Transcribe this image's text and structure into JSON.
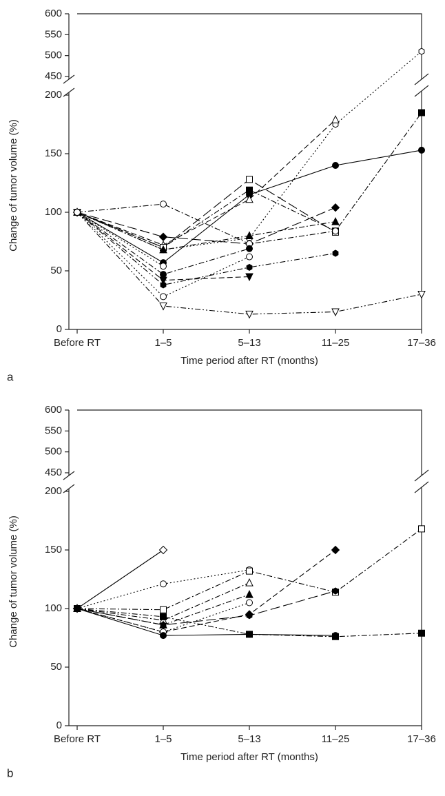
{
  "chart_data": [
    {
      "type": "line",
      "panel": "a",
      "ylabel": "Change of tumor volume (%)",
      "xlabel": "Time period after RT (months)",
      "categories": [
        "Before RT",
        "1–5",
        "5–13",
        "11–25",
        "17–36"
      ],
      "ylim": [
        0,
        600
      ],
      "yticks": [
        0,
        50,
        100,
        150,
        200,
        450,
        500,
        550,
        600
      ],
      "axis_break": [
        200,
        450
      ],
      "series": [
        {
          "color": "#000",
          "marker": "circle",
          "filled": true,
          "linestyle": "solid",
          "values": [
            100,
            57,
            115,
            140,
            153
          ]
        },
        {
          "color": "#000",
          "marker": "square",
          "filled": true,
          "linestyle": "dashdot",
          "values": [
            100,
            70,
            119,
            84,
            185
          ]
        },
        {
          "color": "#000",
          "marker": "hexagon",
          "filled": false,
          "linestyle": "dotted",
          "values": [
            100,
            68,
            78,
            175,
            510
          ]
        },
        {
          "color": "#000",
          "marker": "triangle",
          "filled": false,
          "linestyle": "dashed",
          "values": [
            100,
            72,
            111,
            179,
            null
          ]
        },
        {
          "color": "#000",
          "marker": "square",
          "filled": false,
          "linestyle": "longdash",
          "values": [
            100,
            70,
            128,
            83,
            null
          ]
        },
        {
          "color": "#000",
          "marker": "diamond",
          "filled": true,
          "linestyle": "longdash",
          "values": [
            100,
            79,
            73,
            104,
            null
          ]
        },
        {
          "color": "#000",
          "marker": "triangle",
          "filled": true,
          "linestyle": "dashdot",
          "values": [
            100,
            68,
            80,
            92,
            null
          ]
        },
        {
          "color": "#000",
          "marker": "circle",
          "filled": false,
          "linestyle": "dashdot",
          "values": [
            100,
            107,
            73,
            84,
            null
          ]
        },
        {
          "color": "#000",
          "marker": "hexagon",
          "filled": true,
          "linestyle": "dashdotdot",
          "values": [
            100,
            38,
            53,
            65,
            null
          ]
        },
        {
          "color": "#000",
          "marker": "triangle-down",
          "filled": true,
          "linestyle": "dashed",
          "values": [
            100,
            42,
            45,
            null,
            null
          ]
        },
        {
          "color": "#000",
          "marker": "triangle-down",
          "filled": false,
          "linestyle": "dashdotdot",
          "values": [
            100,
            20,
            13,
            15,
            30
          ]
        },
        {
          "color": "#000",
          "marker": "circle",
          "filled": false,
          "linestyle": "dotted",
          "values": [
            100,
            28,
            62,
            null,
            null
          ]
        },
        {
          "color": "#000",
          "marker": "circle",
          "filled": true,
          "linestyle": "dashdot",
          "values": [
            100,
            47,
            69,
            null,
            null
          ]
        },
        {
          "color": "#000",
          "marker": "circle",
          "filled": false,
          "linestyle": "dotted",
          "values": [
            100,
            54,
            null,
            null,
            null
          ]
        }
      ]
    },
    {
      "type": "line",
      "panel": "b",
      "ylabel": "Change of tumor volume (%)",
      "xlabel": "Time period after RT (months)",
      "categories": [
        "Before RT",
        "1–5",
        "5–13",
        "11–25",
        "17–36"
      ],
      "ylim": [
        0,
        600
      ],
      "yticks": [
        0,
        50,
        100,
        150,
        200,
        450,
        500,
        550,
        600
      ],
      "axis_break": [
        200,
        450
      ],
      "series": [
        {
          "color": "#000",
          "marker": "diamond",
          "filled": false,
          "linestyle": "solid",
          "values": [
            100,
            150,
            null,
            null,
            null
          ]
        },
        {
          "color": "#000",
          "marker": "circle",
          "filled": false,
          "linestyle": "dotted",
          "values": [
            100,
            121,
            133,
            null,
            null
          ]
        },
        {
          "color": "#000",
          "marker": "square",
          "filled": false,
          "linestyle": "dashdot",
          "values": [
            100,
            99,
            132,
            114,
            168
          ]
        },
        {
          "color": "#000",
          "marker": "diamond",
          "filled": true,
          "linestyle": "dashed",
          "values": [
            100,
            80,
            95,
            150,
            null
          ]
        },
        {
          "color": "#000",
          "marker": "triangle",
          "filled": false,
          "linestyle": "dashdot",
          "values": [
            100,
            90,
            122,
            null,
            null
          ]
        },
        {
          "color": "#000",
          "marker": "triangle",
          "filled": true,
          "linestyle": "dashdot",
          "values": [
            100,
            86,
            112,
            null,
            null
          ]
        },
        {
          "color": "#000",
          "marker": "hexagon",
          "filled": true,
          "linestyle": "longdash",
          "values": [
            100,
            86,
            94,
            115,
            null
          ]
        },
        {
          "color": "#000",
          "marker": "circle",
          "filled": false,
          "linestyle": "dotted",
          "values": [
            100,
            80,
            105,
            null,
            null
          ]
        },
        {
          "color": "#000",
          "marker": "square",
          "filled": true,
          "linestyle": "dashdot",
          "values": [
            100,
            93,
            78,
            76,
            79
          ]
        },
        {
          "color": "#000",
          "marker": "circle",
          "filled": true,
          "linestyle": "solid",
          "values": [
            100,
            77,
            78,
            77,
            null
          ]
        }
      ]
    }
  ]
}
